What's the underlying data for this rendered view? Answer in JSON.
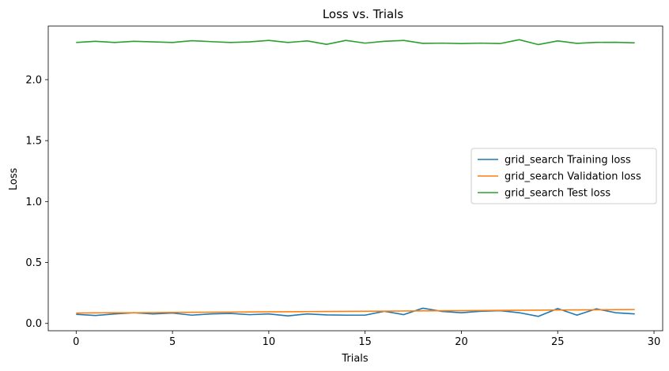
{
  "chart_data": {
    "type": "line",
    "title": "Loss vs. Trials",
    "xlabel": "Trials",
    "ylabel": "Loss",
    "xlim": [
      -1.45,
      30.45
    ],
    "ylim": [
      -0.06,
      2.44
    ],
    "x_ticks": [
      0,
      5,
      10,
      15,
      20,
      25,
      30
    ],
    "y_ticks": [
      0.0,
      0.5,
      1.0,
      1.5,
      2.0
    ],
    "x_tick_labels": [
      "0",
      "5",
      "10",
      "15",
      "20",
      "25",
      "30"
    ],
    "y_tick_labels": [
      "0.0",
      "0.5",
      "1.0",
      "1.5",
      "2.0"
    ],
    "grid": false,
    "legend_position": "center-right",
    "x": [
      0,
      1,
      2,
      3,
      4,
      5,
      6,
      7,
      8,
      9,
      10,
      11,
      12,
      13,
      14,
      15,
      16,
      17,
      18,
      19,
      20,
      21,
      22,
      23,
      24,
      25,
      26,
      27,
      28,
      29
    ],
    "series": [
      {
        "name": "grid_search Training loss",
        "color": "#1f77b4",
        "values": [
          0.075,
          0.065,
          0.078,
          0.088,
          0.078,
          0.085,
          0.068,
          0.078,
          0.082,
          0.072,
          0.078,
          0.062,
          0.078,
          0.07,
          0.068,
          0.068,
          0.1,
          0.072,
          0.125,
          0.098,
          0.088,
          0.1,
          0.105,
          0.088,
          0.058,
          0.122,
          0.068,
          0.12,
          0.088,
          0.078
        ]
      },
      {
        "name": "grid_search Validation loss",
        "color": "#ff7f0e",
        "values": [
          0.085,
          0.087,
          0.088,
          0.088,
          0.089,
          0.09,
          0.091,
          0.092,
          0.093,
          0.094,
          0.095,
          0.096,
          0.097,
          0.098,
          0.099,
          0.1,
          0.101,
          0.102,
          0.103,
          0.104,
          0.105,
          0.106,
          0.107,
          0.108,
          0.109,
          0.11,
          0.111,
          0.112,
          0.113,
          0.114
        ]
      },
      {
        "name": "grid_search Test loss",
        "color": "#2ca02c",
        "values": [
          2.305,
          2.315,
          2.305,
          2.315,
          2.31,
          2.305,
          2.32,
          2.312,
          2.305,
          2.31,
          2.322,
          2.305,
          2.318,
          2.29,
          2.322,
          2.3,
          2.315,
          2.322,
          2.298,
          2.3,
          2.296,
          2.3,
          2.296,
          2.328,
          2.288,
          2.318,
          2.298,
          2.306,
          2.307,
          2.302
        ]
      }
    ]
  }
}
